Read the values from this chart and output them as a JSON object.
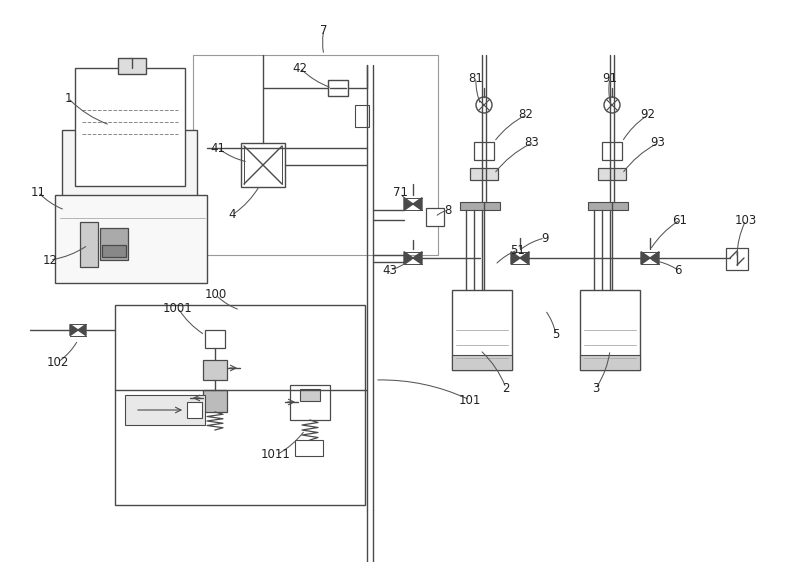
{
  "bg_color": "#ffffff",
  "lc": "#4a4a4a",
  "lw": 1.0,
  "figsize": [
    7.87,
    5.62
  ],
  "dpi": 100
}
